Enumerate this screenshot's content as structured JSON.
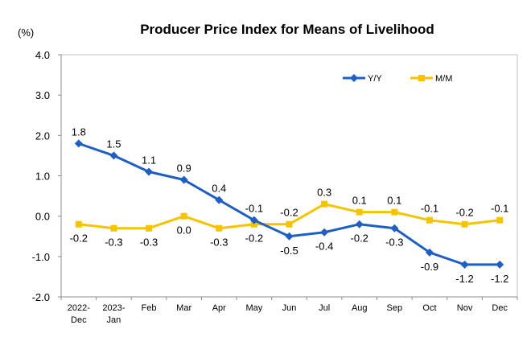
{
  "chart_data": {
    "type": "line",
    "title": "Producer Price Index for Means of Livelihood",
    "unit_label": "(%)",
    "categories": [
      [
        "2022-",
        "Dec"
      ],
      [
        "2023-",
        "Jan"
      ],
      [
        "Feb"
      ],
      [
        "Mar"
      ],
      [
        "Apr"
      ],
      [
        "May"
      ],
      [
        "Jun"
      ],
      [
        "Jul"
      ],
      [
        "Aug"
      ],
      [
        "Sep"
      ],
      [
        "Oct"
      ],
      [
        "Nov"
      ],
      [
        "Dec"
      ]
    ],
    "ylim": [
      -2.0,
      4.0
    ],
    "yticks": [
      "4.0",
      "3.0",
      "2.0",
      "1.0",
      "0.0",
      "-1.0",
      "-2.0"
    ],
    "ytick_values": [
      4,
      3,
      2,
      1,
      0,
      -1,
      -2
    ],
    "grid": false,
    "legend_position": "top-right",
    "series": [
      {
        "name": "Y/Y",
        "color": "#1f5fc4",
        "marker": "diamond",
        "values": [
          1.8,
          1.5,
          1.1,
          0.9,
          0.4,
          -0.1,
          -0.5,
          -0.4,
          -0.2,
          -0.3,
          -0.9,
          -1.2,
          -1.2
        ],
        "labels": [
          "1.8",
          "1.5",
          "1.1",
          "0.9",
          "0.4",
          "-0.1",
          "-0.5",
          "-0.4",
          "-0.2",
          "-0.3",
          "-0.9",
          "-1.2",
          "-1.2"
        ],
        "label_side": [
          "above",
          "above",
          "above",
          "above",
          "above",
          "above",
          "below",
          "below",
          "below",
          "below",
          "below",
          "below",
          "below"
        ]
      },
      {
        "name": "M/M",
        "color": "#f5c300",
        "marker": "square",
        "values": [
          -0.2,
          -0.3,
          -0.3,
          0.0,
          -0.3,
          -0.2,
          -0.2,
          0.3,
          0.1,
          0.1,
          -0.1,
          -0.2,
          -0.1
        ],
        "labels": [
          "-0.2",
          "-0.3",
          "-0.3",
          "0.0",
          "-0.3",
          "-0.2",
          "-0.2",
          "0.3",
          "0.1",
          "0.1",
          "-0.1",
          "-0.2",
          "-0.1"
        ],
        "label_side": [
          "below",
          "below",
          "below",
          "below",
          "below",
          "below",
          "above",
          "above",
          "above",
          "above",
          "above",
          "above",
          "above"
        ]
      }
    ]
  }
}
